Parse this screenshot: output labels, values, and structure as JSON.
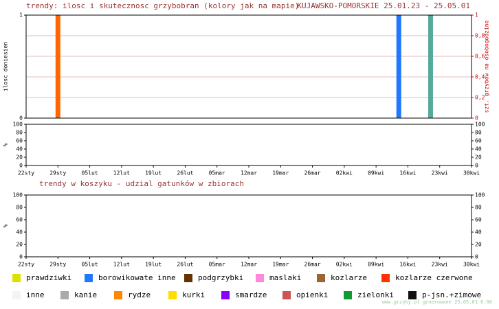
{
  "chart_data": [
    {
      "type": "bar",
      "title": "trendy: ilosc i skutecznosc grzybobran (kolory jak na mapie)",
      "subtitle": "KUJAWSKO-POMORSKIE 25.01.23 - 25.05.01",
      "ylabel": "ilosc doniesien",
      "y2label": "szt. grzybow na osobogodzine",
      "x": [
        7,
        82,
        89
      ],
      "values": [
        1,
        1,
        1
      ],
      "colors": [
        "#ff6600",
        "#2277ff",
        "#55aa99"
      ],
      "xlim": [
        0,
        98
      ],
      "ylim": [
        0,
        1
      ],
      "yticks": [
        0,
        1
      ],
      "y2lim": [
        0,
        1
      ],
      "y2ticks": [
        0,
        {
          "value": 0.2,
          "label": "0,2"
        },
        {
          "value": 0.4,
          "label": "0,4"
        },
        {
          "value": 0.6,
          "label": "0,6"
        },
        {
          "value": 0.8,
          "label": "0,8"
        },
        1
      ],
      "grid": true
    },
    {
      "type": "line",
      "ylabel": "%",
      "series": [],
      "xlim": [
        0,
        98
      ],
      "ylim": [
        0,
        100
      ],
      "yticks": [
        0,
        20,
        40,
        60,
        80,
        100
      ],
      "xticks": [
        {
          "value": 0,
          "label": "22sty"
        },
        {
          "value": 7,
          "label": "29sty"
        },
        {
          "value": 14,
          "label": "05lut"
        },
        {
          "value": 21,
          "label": "12lut"
        },
        {
          "value": 28,
          "label": "19lut"
        },
        {
          "value": 35,
          "label": "26lut"
        },
        {
          "value": 42,
          "label": "05mar"
        },
        {
          "value": 49,
          "label": "12mar"
        },
        {
          "value": 56,
          "label": "19mar"
        },
        {
          "value": 63,
          "label": "26mar"
        },
        {
          "value": 70,
          "label": "02kwi"
        },
        {
          "value": 77,
          "label": "09kwi"
        },
        {
          "value": 84,
          "label": "16kwi"
        },
        {
          "value": 91,
          "label": "23kwi"
        },
        {
          "value": 98,
          "label": "30kwi"
        }
      ]
    },
    {
      "type": "line",
      "title": "trendy w koszyku - udzial gatunków w zbiorach",
      "ylabel": "%",
      "series": [],
      "xlim": [
        0,
        98
      ],
      "ylim": [
        0,
        100
      ],
      "yticks": [
        0,
        20,
        40,
        60,
        80,
        100
      ],
      "xticks": [
        {
          "value": 0,
          "label": "22sty"
        },
        {
          "value": 7,
          "label": "29sty"
        },
        {
          "value": 14,
          "label": "05lut"
        },
        {
          "value": 21,
          "label": "12lut"
        },
        {
          "value": 28,
          "label": "19lut"
        },
        {
          "value": 35,
          "label": "26lut"
        },
        {
          "value": 42,
          "label": "05mar"
        },
        {
          "value": 49,
          "label": "12mar"
        },
        {
          "value": 56,
          "label": "19mar"
        },
        {
          "value": 63,
          "label": "26mar"
        },
        {
          "value": 70,
          "label": "02kwi"
        },
        {
          "value": 77,
          "label": "09kwi"
        },
        {
          "value": 84,
          "label": "16kwi"
        },
        {
          "value": 91,
          "label": "23kwi"
        },
        {
          "value": 98,
          "label": "30kwi"
        }
      ]
    }
  ],
  "legend": [
    {
      "name": "prawdziwki",
      "color": "#e0e000"
    },
    {
      "name": "borowikowate inne",
      "color": "#2277ff"
    },
    {
      "name": "podgrzybki",
      "color": "#663300"
    },
    {
      "name": "maslaki",
      "color": "#ff88dd"
    },
    {
      "name": "kozlarze",
      "color": "#996633"
    },
    {
      "name": "kozlarze czerwone",
      "color": "#ff3300"
    },
    {
      "name": "inne",
      "color": "#f4f4f4"
    },
    {
      "name": "kanie",
      "color": "#aaaaaa"
    },
    {
      "name": "rydze",
      "color": "#ff8800"
    },
    {
      "name": "kurki",
      "color": "#ffdd00"
    },
    {
      "name": "smardze",
      "color": "#8800ff"
    },
    {
      "name": "opienki",
      "color": "#cc5555"
    },
    {
      "name": "zielonki",
      "color": "#119933"
    },
    {
      "name": "p-jsn.+zimowe",
      "color": "#111111"
    }
  ],
  "footer": "www.grzyby.pl generowane 25.05.01  6:06"
}
